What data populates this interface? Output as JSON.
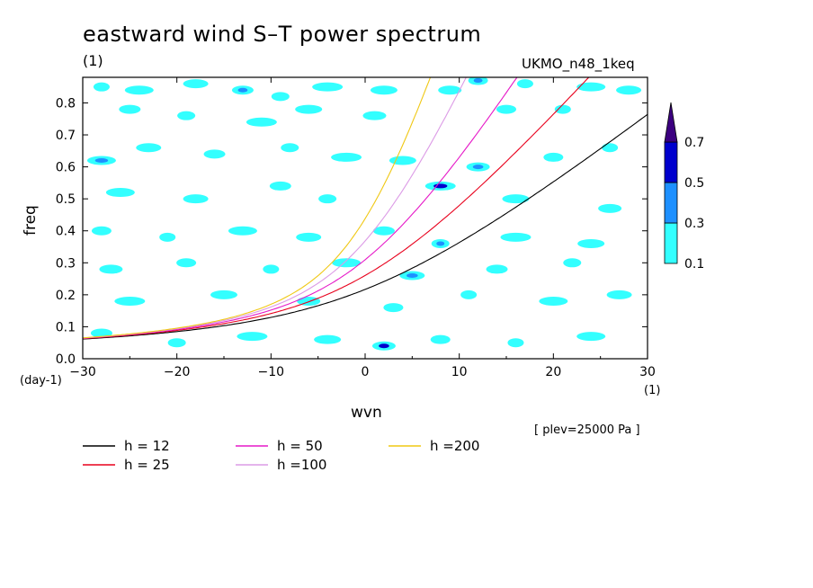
{
  "title": "eastward wind S–T power spectrum",
  "units_top": "(1)",
  "model": "UKMO_n48_1keq",
  "plev_label": "[ plev=25000 Pa ]",
  "colors": {
    "fill_01": "#33ffff",
    "fill_03": "#1e90ff",
    "fill_05": "#0000cd",
    "fill_07": "#3c0080"
  },
  "chart_data": {
    "type": "heatmap",
    "title": "eastward wind S–T power spectrum",
    "xlabel": "wvn",
    "xunit": "(1)",
    "ylabel": "freq",
    "yunit": "(day-1)",
    "xlim": [
      -30,
      30
    ],
    "ylim": [
      0,
      0.88
    ],
    "xticks": [
      -30,
      -20,
      -10,
      0,
      10,
      20,
      30
    ],
    "yticks": [
      0.0,
      0.1,
      0.2,
      0.3,
      0.4,
      0.5,
      0.6,
      0.7,
      0.8
    ],
    "x_tick_labels": [
      "−30",
      "−20",
      "−10",
      "0",
      "10",
      "20",
      "30"
    ],
    "y_tick_labels": [
      "0.0",
      "0.1",
      "0.2",
      "0.3",
      "0.4",
      "0.5",
      "0.6",
      "0.7",
      "0.8"
    ],
    "colorbar": {
      "levels": [
        0.1,
        0.3,
        0.5,
        0.7
      ],
      "labels": [
        "0.1",
        "0.3",
        "0.5",
        "0.7"
      ],
      "colors": [
        "#33ffff",
        "#1e90ff",
        "#0000cd",
        "#3c0080"
      ]
    },
    "blobs": [
      {
        "x": -28,
        "y": 0.85,
        "v": 0.15
      },
      {
        "x": -24,
        "y": 0.84,
        "v": 0.15
      },
      {
        "x": -18,
        "y": 0.86,
        "v": 0.15
      },
      {
        "x": -13,
        "y": 0.84,
        "v": 0.35
      },
      {
        "x": -9,
        "y": 0.82,
        "v": 0.15
      },
      {
        "x": -4,
        "y": 0.85,
        "v": 0.15
      },
      {
        "x": 2,
        "y": 0.84,
        "v": 0.15
      },
      {
        "x": 9,
        "y": 0.84,
        "v": 0.15
      },
      {
        "x": 12,
        "y": 0.87,
        "v": 0.35
      },
      {
        "x": 17,
        "y": 0.86,
        "v": 0.15
      },
      {
        "x": 24,
        "y": 0.85,
        "v": 0.15
      },
      {
        "x": 28,
        "y": 0.84,
        "v": 0.15
      },
      {
        "x": -25,
        "y": 0.78,
        "v": 0.15
      },
      {
        "x": -19,
        "y": 0.76,
        "v": 0.15
      },
      {
        "x": -11,
        "y": 0.74,
        "v": 0.15
      },
      {
        "x": -6,
        "y": 0.78,
        "v": 0.15
      },
      {
        "x": 1,
        "y": 0.76,
        "v": 0.15
      },
      {
        "x": 15,
        "y": 0.78,
        "v": 0.15
      },
      {
        "x": 21,
        "y": 0.78,
        "v": 0.15
      },
      {
        "x": -28,
        "y": 0.62,
        "v": 0.35
      },
      {
        "x": -23,
        "y": 0.66,
        "v": 0.15
      },
      {
        "x": -16,
        "y": 0.64,
        "v": 0.15
      },
      {
        "x": -8,
        "y": 0.66,
        "v": 0.15
      },
      {
        "x": -2,
        "y": 0.63,
        "v": 0.15
      },
      {
        "x": 4,
        "y": 0.62,
        "v": 0.15
      },
      {
        "x": 12,
        "y": 0.6,
        "v": 0.35
      },
      {
        "x": 20,
        "y": 0.63,
        "v": 0.15
      },
      {
        "x": 26,
        "y": 0.66,
        "v": 0.15
      },
      {
        "x": -26,
        "y": 0.52,
        "v": 0.15
      },
      {
        "x": -18,
        "y": 0.5,
        "v": 0.15
      },
      {
        "x": -9,
        "y": 0.54,
        "v": 0.15
      },
      {
        "x": -4,
        "y": 0.5,
        "v": 0.15
      },
      {
        "x": 8,
        "y": 0.54,
        "v": 0.55
      },
      {
        "x": 16,
        "y": 0.5,
        "v": 0.15
      },
      {
        "x": 26,
        "y": 0.47,
        "v": 0.15
      },
      {
        "x": -28,
        "y": 0.4,
        "v": 0.15
      },
      {
        "x": -21,
        "y": 0.38,
        "v": 0.15
      },
      {
        "x": -13,
        "y": 0.4,
        "v": 0.15
      },
      {
        "x": -6,
        "y": 0.38,
        "v": 0.15
      },
      {
        "x": 2,
        "y": 0.4,
        "v": 0.15
      },
      {
        "x": 8,
        "y": 0.36,
        "v": 0.35
      },
      {
        "x": 16,
        "y": 0.38,
        "v": 0.15
      },
      {
        "x": 24,
        "y": 0.36,
        "v": 0.15
      },
      {
        "x": -27,
        "y": 0.28,
        "v": 0.15
      },
      {
        "x": -19,
        "y": 0.3,
        "v": 0.15
      },
      {
        "x": -10,
        "y": 0.28,
        "v": 0.15
      },
      {
        "x": -2,
        "y": 0.3,
        "v": 0.15
      },
      {
        "x": 5,
        "y": 0.26,
        "v": 0.35
      },
      {
        "x": 14,
        "y": 0.28,
        "v": 0.15
      },
      {
        "x": 22,
        "y": 0.3,
        "v": 0.15
      },
      {
        "x": -25,
        "y": 0.18,
        "v": 0.15
      },
      {
        "x": -15,
        "y": 0.2,
        "v": 0.15
      },
      {
        "x": -6,
        "y": 0.18,
        "v": 0.15
      },
      {
        "x": 3,
        "y": 0.16,
        "v": 0.15
      },
      {
        "x": 11,
        "y": 0.2,
        "v": 0.15
      },
      {
        "x": 20,
        "y": 0.18,
        "v": 0.15
      },
      {
        "x": 27,
        "y": 0.2,
        "v": 0.15
      },
      {
        "x": -28,
        "y": 0.08,
        "v": 0.15
      },
      {
        "x": -20,
        "y": 0.05,
        "v": 0.15
      },
      {
        "x": -12,
        "y": 0.07,
        "v": 0.15
      },
      {
        "x": -4,
        "y": 0.06,
        "v": 0.15
      },
      {
        "x": 2,
        "y": 0.04,
        "v": 0.55
      },
      {
        "x": 8,
        "y": 0.06,
        "v": 0.15
      },
      {
        "x": 16,
        "y": 0.05,
        "v": 0.15
      },
      {
        "x": 24,
        "y": 0.07,
        "v": 0.15
      }
    ],
    "series": [
      {
        "name": "h = 12",
        "h": 12,
        "color": "#000000"
      },
      {
        "name": "h = 25",
        "h": 25,
        "color": "#e8001c"
      },
      {
        "name": "h = 50",
        "h": 50,
        "color": "#e619c8"
      },
      {
        "name": "h =100",
        "h": 100,
        "color": "#dc9be6"
      },
      {
        "name": "h =200",
        "h": 200,
        "color": "#f0c814"
      }
    ]
  }
}
